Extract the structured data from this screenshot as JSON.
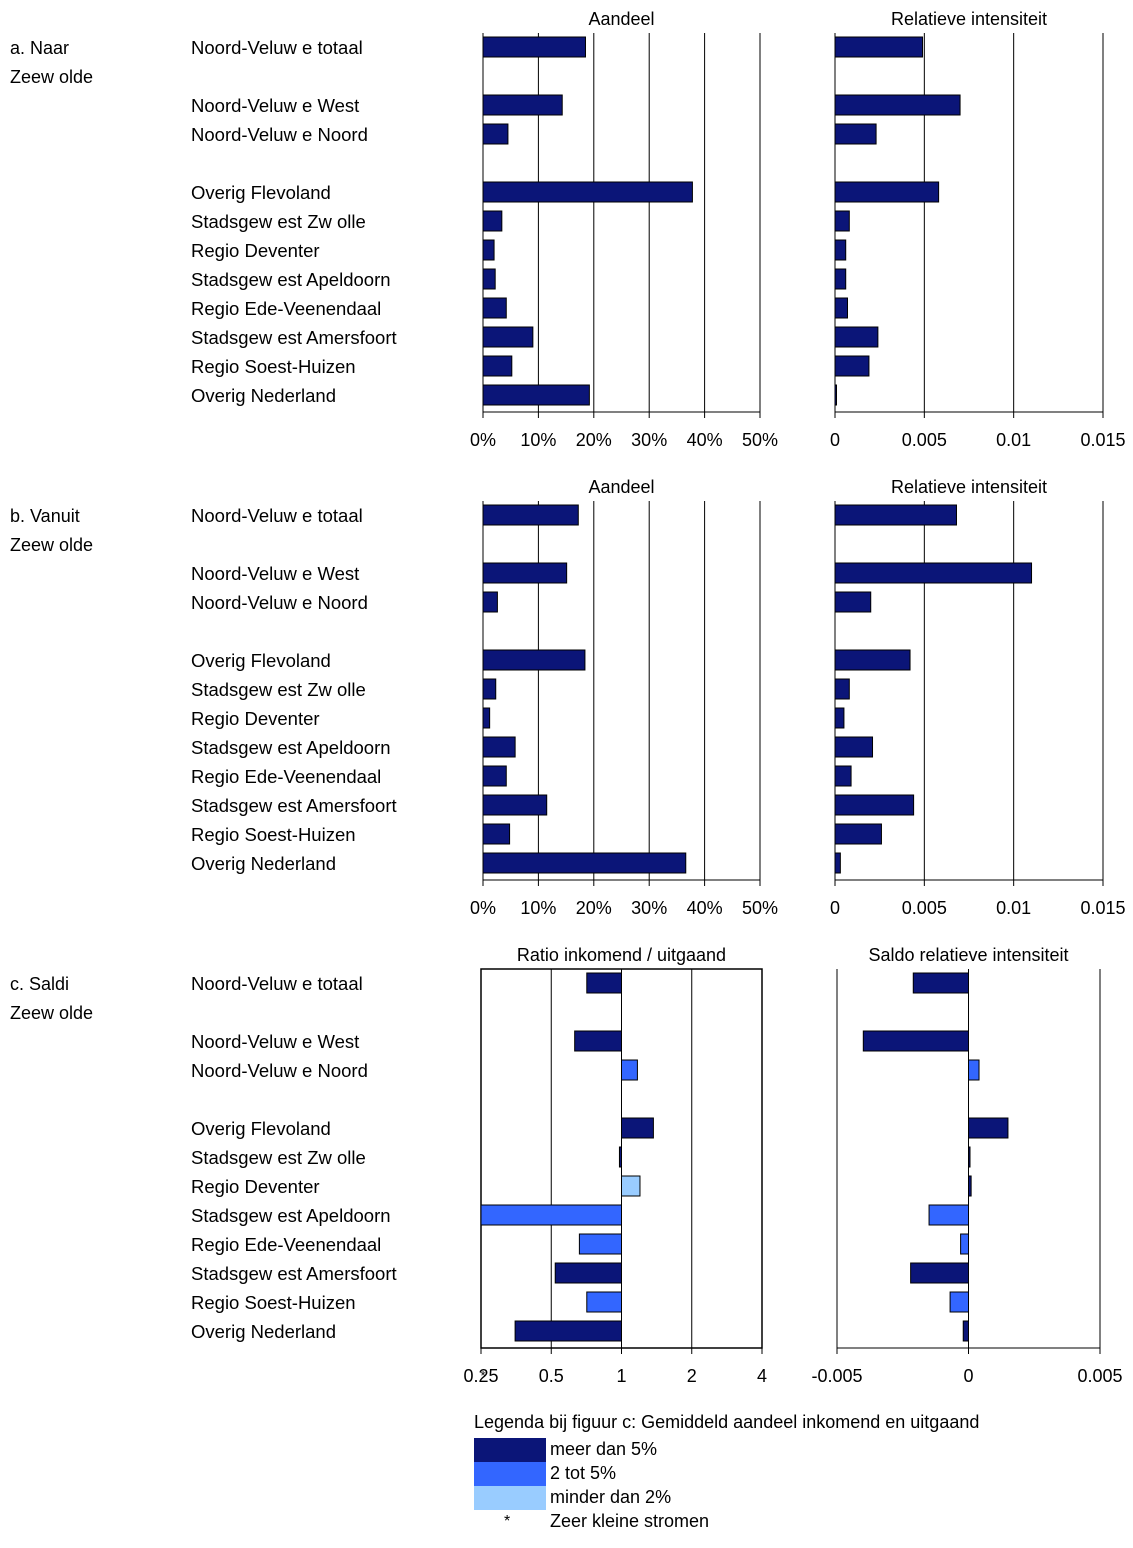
{
  "categories": [
    "Noord-Veluw e totaal",
    "Noord-Veluw e West",
    "Noord-Veluw e Noord",
    "Overig Flevoland",
    "Stadsgew est Zw olle",
    "Regio Deventer",
    "Stadsgew est Apeldoorn",
    "Regio Ede-Veenendaal",
    "Stadsgew est Amersfoort",
    "Regio Soest-Huizen",
    "Overig Nederland"
  ],
  "sections": [
    {
      "label_line1": "a. Naar",
      "label_line2": "Zeew olde"
    },
    {
      "label_line1": "b. Vanuit",
      "label_line2": "Zeew olde"
    },
    {
      "label_line1": "c. Saldi",
      "label_line2": "Zeew olde"
    }
  ],
  "colors": {
    "meer_dan_5": "#0b1578",
    "tot_2_5": "#3366ff",
    "minder_dan_2": "#99ccff"
  },
  "legend": {
    "title": "Legenda bij figuur c: Gemiddeld aandeel inkomend en uitgaand",
    "items": [
      {
        "label": "meer dan 5%",
        "color": "#0b1578"
      },
      {
        "label": "2 tot 5%",
        "color": "#3366ff"
      },
      {
        "label": "minder dan 2%",
        "color": "#99ccff"
      }
    ],
    "star_symbol": "*",
    "star_label": "Zeer kleine stromen"
  },
  "chart_data": [
    {
      "id": "a-aandeel",
      "type": "bar",
      "orientation": "horizontal",
      "title": "Aandeel",
      "xlim": [
        0,
        0.5
      ],
      "ticks": [
        0,
        0.1,
        0.2,
        0.3,
        0.4,
        0.5
      ],
      "tick_labels": [
        "0%",
        "10%",
        "20%",
        "30%",
        "40%",
        "50%"
      ],
      "grid": true,
      "frame": false,
      "values": [
        0.185,
        0.143,
        0.045,
        0.378,
        0.034,
        0.02,
        0.022,
        0.042,
        0.09,
        0.052,
        0.192
      ],
      "colors": [
        "#0b1578",
        "#0b1578",
        "#0b1578",
        "#0b1578",
        "#0b1578",
        "#0b1578",
        "#0b1578",
        "#0b1578",
        "#0b1578",
        "#0b1578",
        "#0b1578"
      ]
    },
    {
      "id": "a-intensiteit",
      "type": "bar",
      "orientation": "horizontal",
      "title": "Relatieve intensiteit",
      "xlim": [
        0,
        0.015
      ],
      "ticks": [
        0,
        0.005,
        0.01,
        0.015
      ],
      "tick_labels": [
        "0",
        "0.005",
        "0.01",
        "0.015"
      ],
      "grid": true,
      "frame": false,
      "values": [
        0.0049,
        0.007,
        0.0023,
        0.0058,
        0.0008,
        0.0006,
        0.0006,
        0.0007,
        0.0024,
        0.0019,
        0
      ],
      "colors": [
        "#0b1578",
        "#0b1578",
        "#0b1578",
        "#0b1578",
        "#0b1578",
        "#0b1578",
        "#0b1578",
        "#0b1578",
        "#0b1578",
        "#0b1578",
        "#0b1578"
      ]
    },
    {
      "id": "b-aandeel",
      "type": "bar",
      "orientation": "horizontal",
      "title": "Aandeel",
      "xlim": [
        0,
        0.5
      ],
      "ticks": [
        0,
        0.1,
        0.2,
        0.3,
        0.4,
        0.5
      ],
      "tick_labels": [
        "0%",
        "10%",
        "20%",
        "30%",
        "40%",
        "50%"
      ],
      "grid": true,
      "frame": false,
      "values": [
        0.172,
        0.151,
        0.026,
        0.184,
        0.023,
        0.012,
        0.058,
        0.042,
        0.115,
        0.048,
        0.366
      ],
      "colors": [
        "#0b1578",
        "#0b1578",
        "#0b1578",
        "#0b1578",
        "#0b1578",
        "#0b1578",
        "#0b1578",
        "#0b1578",
        "#0b1578",
        "#0b1578",
        "#0b1578"
      ]
    },
    {
      "id": "b-intensiteit",
      "type": "bar",
      "orientation": "horizontal",
      "title": "Relatieve intensiteit",
      "xlim": [
        0,
        0.015
      ],
      "ticks": [
        0,
        0.005,
        0.01,
        0.015
      ],
      "tick_labels": [
        "0",
        "0.005",
        "0.01",
        "0.015"
      ],
      "grid": true,
      "frame": false,
      "values": [
        0.0068,
        0.011,
        0.002,
        0.0042,
        0.0008,
        0.0005,
        0.0021,
        0.0009,
        0.0044,
        0.0026,
        0.0003
      ],
      "colors": [
        "#0b1578",
        "#0b1578",
        "#0b1578",
        "#0b1578",
        "#0b1578",
        "#0b1578",
        "#0b1578",
        "#0b1578",
        "#0b1578",
        "#0b1578",
        "#0b1578"
      ]
    },
    {
      "id": "c-ratio",
      "type": "bar",
      "orientation": "horizontal",
      "title": "Ratio inkomend / uitgaand",
      "scale": "log2",
      "xlim": [
        0.25,
        4
      ],
      "baseline": 1,
      "ticks": [
        0.25,
        0.5,
        1,
        2,
        4
      ],
      "tick_labels": [
        "0.25",
        "0.5",
        "1",
        "2",
        "4"
      ],
      "first_tick_marker": "*",
      "grid": true,
      "frame": true,
      "values": [
        0.71,
        0.63,
        1.17,
        1.37,
        0.98,
        1.2,
        0.25,
        0.66,
        0.52,
        0.71,
        0.35
      ],
      "colors": [
        "#0b1578",
        "#0b1578",
        "#3366ff",
        "#0b1578",
        "#0b1578",
        "#99ccff",
        "#3366ff",
        "#3366ff",
        "#0b1578",
        "#3366ff",
        "#0b1578"
      ]
    },
    {
      "id": "c-saldo",
      "type": "bar",
      "orientation": "horizontal",
      "title": "Saldo relatieve intensiteit",
      "xlim": [
        -0.005,
        0.005
      ],
      "baseline": 0,
      "ticks": [
        -0.005,
        0,
        0.005
      ],
      "tick_labels": [
        "-0.005",
        "0",
        "0.005"
      ],
      "grid": true,
      "frame": false,
      "values": [
        -0.0021,
        -0.004,
        0.0004,
        0.0015,
        0,
        0.0001,
        -0.0015,
        -0.0003,
        -0.0022,
        -0.0007,
        -0.0002
      ],
      "colors": [
        "#0b1578",
        "#0b1578",
        "#3366ff",
        "#0b1578",
        "#0b1578",
        "#0b1578",
        "#3366ff",
        "#3366ff",
        "#0b1578",
        "#3366ff",
        "#0b1578"
      ]
    }
  ]
}
